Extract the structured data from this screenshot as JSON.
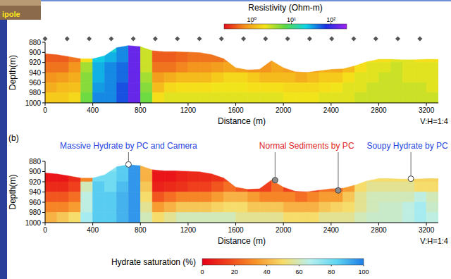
{
  "slide_label": "ipole",
  "chart_data": [
    {
      "type": "heatmap",
      "xlabel": "Distance (m)",
      "ylabel": "Depth(m)",
      "scale_note": "V:H=1:4",
      "xlim": [
        0,
        3300
      ],
      "ylim": [
        880,
        1000
      ],
      "xticks": [
        0,
        400,
        800,
        1200,
        1600,
        2000,
        2400,
        2800,
        3200
      ],
      "yticks": [
        880,
        900,
        920,
        940,
        960,
        980,
        1000
      ],
      "x_edges": [
        0,
        100,
        200,
        300,
        400,
        500,
        600,
        700,
        800,
        900,
        1000,
        1100,
        1200,
        1300,
        1400,
        1500,
        1600,
        1700,
        1800,
        1900,
        2000,
        2100,
        2200,
        2300,
        2400,
        2500,
        2600,
        2700,
        2800,
        2900,
        3000,
        3100,
        3200,
        3300
      ],
      "y_edges": [
        880,
        900,
        920,
        940,
        960,
        980,
        1000
      ],
      "cells": [
        [
          null,
          null,
          null,
          null,
          null,
          20,
          40,
          150,
          3,
          0.4,
          0.4,
          0.5,
          0.5,
          null,
          null,
          null,
          null,
          null,
          null,
          null,
          null,
          null,
          null,
          null,
          null,
          null,
          null,
          null,
          null,
          null,
          null,
          null,
          null
        ],
        [
          0.4,
          0.4,
          0.5,
          2,
          25,
          30,
          40,
          150,
          3,
          0.4,
          0.4,
          0.45,
          0.5,
          0.5,
          0.5,
          0.6,
          null,
          null,
          0.7,
          0.8,
          null,
          null,
          null,
          null,
          null,
          null,
          1.5,
          2,
          2,
          2.5,
          2.5,
          2,
          2
        ],
        [
          0.5,
          0.5,
          0.7,
          4,
          30,
          40,
          50,
          150,
          3,
          0.5,
          0.5,
          0.6,
          0.7,
          0.7,
          0.8,
          0.9,
          0.8,
          0.7,
          0.7,
          0.9,
          0.8,
          0.7,
          0.8,
          1,
          0.9,
          1.2,
          2,
          2.5,
          2.5,
          3,
          2.5,
          2.5,
          2.5
        ],
        [
          0.7,
          0.8,
          1,
          5,
          30,
          40,
          50,
          150,
          4,
          0.8,
          1,
          1.2,
          1.2,
          1.2,
          1.5,
          1.8,
          1.8,
          1.5,
          1.2,
          1.2,
          1.2,
          1,
          1.2,
          1.5,
          1.5,
          2,
          2.5,
          2.5,
          3,
          3,
          2.5,
          2.5,
          2.5
        ],
        [
          1,
          1.2,
          1.3,
          5,
          35,
          40,
          60,
          150,
          5,
          1.2,
          1.8,
          2,
          2,
          2,
          2.2,
          2.2,
          2.2,
          2,
          2,
          2,
          1.8,
          1.8,
          1.8,
          2,
          2.2,
          2.5,
          2.5,
          3,
          3,
          3,
          3,
          3,
          2.5
        ],
        [
          1.5,
          1.5,
          1.8,
          6,
          40,
          40,
          60,
          150,
          6,
          2,
          2.5,
          2.5,
          2.5,
          2.5,
          2.5,
          2.5,
          2.5,
          2.5,
          2.5,
          2.5,
          2.2,
          2.2,
          2.2,
          2.5,
          2.5,
          2.5,
          3,
          3,
          3,
          3,
          3,
          3,
          3
        ]
      ],
      "surface": {
        "x": [
          0,
          100,
          200,
          300,
          400,
          500,
          600,
          700,
          800,
          900,
          1000,
          1100,
          1200,
          1300,
          1400,
          1500,
          1600,
          1700,
          1800,
          1900,
          2000,
          2100,
          2200,
          2300,
          2400,
          2500,
          2600,
          2700,
          2800,
          2900,
          3000,
          3100,
          3200,
          3300
        ],
        "depth": [
          902,
          904,
          908,
          912,
          912,
          906,
          890,
          886,
          888,
          896,
          898,
          898,
          899,
          900,
          904,
          912,
          930,
          934,
          933,
          916,
          930,
          938,
          939,
          936,
          933,
          932,
          926,
          918,
          913,
          913,
          914,
          914,
          913,
          913
        ]
      },
      "electrodes_x": [
        0,
        185,
        370,
        555,
        740,
        925,
        1110,
        1295,
        1480,
        1665,
        1850,
        2035,
        2220,
        2405,
        2590,
        2775,
        2960,
        3145
      ],
      "colorbar": {
        "label": "Resistivity (Ohm-m)",
        "log": true,
        "range": [
          0.2,
          250
        ],
        "ticks": [
          {
            "value": 1,
            "label": "10⁰"
          },
          {
            "value": 10,
            "label": "10¹"
          },
          {
            "value": 100,
            "label": "10²"
          }
        ],
        "colors": [
          "#e3101c",
          "#f4901e",
          "#f5e41a",
          "#5ad94a",
          "#10d4e6",
          "#1a30e0",
          "#a020f0"
        ]
      }
    },
    {
      "type": "heatmap",
      "panel_label": "(b)",
      "xlabel": "Distance (m)",
      "ylabel": "Depth(m)",
      "scale_note": "V:H=1:4",
      "xlim": [
        0,
        3300
      ],
      "ylim": [
        880,
        1000
      ],
      "xticks": [
        0,
        400,
        800,
        1200,
        1600,
        2000,
        2400,
        2800,
        3200
      ],
      "yticks": [
        880,
        900,
        920,
        940,
        960,
        980,
        1000
      ],
      "x_edges": [
        0,
        100,
        200,
        300,
        400,
        500,
        600,
        700,
        800,
        900,
        1000,
        1100,
        1200,
        1300,
        1400,
        1500,
        1600,
        1700,
        1800,
        1900,
        2000,
        2100,
        2200,
        2300,
        2400,
        2500,
        2600,
        2700,
        2800,
        2900,
        3000,
        3100,
        3200,
        3300
      ],
      "y_edges": [
        880,
        900,
        920,
        940,
        960,
        980,
        1000
      ],
      "cells": [
        [
          null,
          null,
          null,
          null,
          null,
          75,
          85,
          95,
          40,
          5,
          5,
          8,
          10,
          null,
          null,
          null,
          null,
          null,
          null,
          null,
          null,
          null,
          null,
          null,
          null,
          null,
          null,
          null,
          null,
          null,
          null,
          null,
          null
        ],
        [
          5,
          5,
          10,
          30,
          80,
          80,
          85,
          95,
          40,
          5,
          5,
          8,
          10,
          10,
          12,
          15,
          null,
          null,
          20,
          25,
          null,
          null,
          null,
          null,
          null,
          null,
          45,
          50,
          50,
          50,
          50,
          48,
          48
        ],
        [
          10,
          10,
          15,
          60,
          85,
          80,
          88,
          95,
          45,
          8,
          10,
          12,
          15,
          15,
          20,
          25,
          20,
          15,
          15,
          25,
          15,
          10,
          15,
          25,
          25,
          35,
          50,
          55,
          55,
          55,
          55,
          50,
          50
        ],
        [
          20,
          20,
          25,
          65,
          85,
          85,
          90,
          95,
          50,
          20,
          25,
          30,
          30,
          30,
          35,
          40,
          40,
          35,
          30,
          30,
          30,
          25,
          30,
          35,
          35,
          45,
          55,
          60,
          60,
          60,
          60,
          65,
          60
        ],
        [
          30,
          30,
          35,
          65,
          85,
          85,
          90,
          95,
          55,
          35,
          40,
          45,
          45,
          45,
          48,
          50,
          50,
          45,
          45,
          45,
          40,
          40,
          40,
          45,
          48,
          50,
          55,
          60,
          62,
          62,
          65,
          70,
          62
        ],
        [
          40,
          45,
          50,
          70,
          85,
          85,
          90,
          95,
          60,
          50,
          55,
          60,
          60,
          60,
          60,
          60,
          55,
          55,
          55,
          55,
          50,
          50,
          50,
          55,
          55,
          55,
          60,
          62,
          62,
          62,
          65,
          70,
          65
        ]
      ],
      "surface": {
        "x": [
          0,
          100,
          200,
          300,
          400,
          500,
          600,
          700,
          800,
          900,
          1000,
          1100,
          1200,
          1300,
          1400,
          1500,
          1600,
          1700,
          1800,
          1900,
          2000,
          2100,
          2200,
          2300,
          2400,
          2500,
          2600,
          2700,
          2800,
          2900,
          3000,
          3100,
          3200,
          3300
        ],
        "depth": [
          902,
          904,
          908,
          912,
          912,
          906,
          890,
          886,
          888,
          896,
          898,
          898,
          899,
          900,
          904,
          912,
          930,
          934,
          933,
          916,
          930,
          938,
          939,
          936,
          933,
          932,
          926,
          918,
          913,
          913,
          914,
          914,
          913,
          913
        ]
      },
      "annotations": [
        {
          "text": "Massive Hydrate by PC and Camera",
          "color": "#2a46e0",
          "marker": "open",
          "points": [
            {
              "x": 700,
              "depth": 886
            }
          ]
        },
        {
          "text": "Normal Sediments by PC",
          "color": "#e02424",
          "marker": "filled",
          "points": [
            {
              "x": 1930,
              "depth": 917
            },
            {
              "x": 2460,
              "depth": 937
            }
          ]
        },
        {
          "text": "Soupy Hydrate by PC",
          "color": "#2a46e0",
          "marker": "open",
          "points": [
            {
              "x": 3070,
              "depth": 914
            }
          ]
        }
      ],
      "colorbar": {
        "label": "Hydrate saturation (%)",
        "log": false,
        "range": [
          0,
          100
        ],
        "ticks": [
          0,
          20,
          40,
          60,
          80,
          100
        ],
        "colors": [
          "#e60018",
          "#f0461c",
          "#f7952a",
          "#f6dc6a",
          "#b8f0ee",
          "#5fd6f2",
          "#1f7ce6"
        ]
      }
    }
  ]
}
